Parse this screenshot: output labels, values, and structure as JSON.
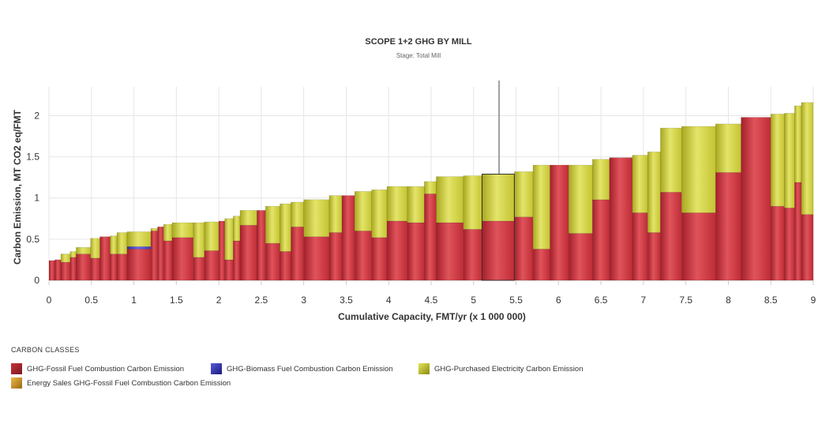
{
  "colors": {
    "fossil": "#c9303a",
    "biomass": "#3a3ac4",
    "electricity": "#cfcf3a",
    "energy_sales": "#d19a2a",
    "grid": "#e6e6e6",
    "axis": "#cccccc"
  },
  "chart_data": {
    "type": "bar",
    "title": "SCOPE 1+2 GHG BY MILL",
    "subtitle": "Stage: Total Mill",
    "xlabel": "Cumulative Capacity, FMT/yr (x 1 000 000)",
    "ylabel": "Carbon Emission, MT CO2 eq/FMT",
    "xlim": [
      0,
      9
    ],
    "ylim": [
      0,
      2.35
    ],
    "xticks": [
      "0",
      "0.5",
      "1",
      "1.5",
      "2",
      "2.5",
      "3",
      "3.5",
      "4",
      "4.5",
      "5",
      "5.5",
      "6",
      "6.5",
      "7",
      "7.5",
      "8",
      "8.5",
      "9"
    ],
    "yticks": [
      "0",
      "0.5",
      "1",
      "1.5",
      "2"
    ],
    "grid": true,
    "legend_title": "CARBON CLASSES",
    "legend_position": "bottom-left",
    "series": [
      {
        "key": "fossil",
        "name": "GHG-Fossil Fuel Combustion Carbon Emission"
      },
      {
        "key": "biomass",
        "name": "GHG-Biomass Fuel Combustion Carbon Emission"
      },
      {
        "key": "electricity",
        "name": "GHG-Purchased Electricity Carbon Emission"
      },
      {
        "key": "energy_sales",
        "name": "Energy Sales GHG-Fossil Fuel Combustion Carbon Emission"
      }
    ],
    "mills": [
      {
        "start": 0.0,
        "end": 0.07,
        "fossil": 0.24,
        "biomass": 0,
        "electricity": 0.0
      },
      {
        "start": 0.07,
        "end": 0.14,
        "fossil": 0.25,
        "biomass": 0,
        "electricity": 0.0
      },
      {
        "start": 0.14,
        "end": 0.25,
        "fossil": 0.22,
        "biomass": 0,
        "electricity": 0.1
      },
      {
        "start": 0.25,
        "end": 0.32,
        "fossil": 0.28,
        "biomass": 0,
        "electricity": 0.07
      },
      {
        "start": 0.32,
        "end": 0.49,
        "fossil": 0.32,
        "biomass": 0,
        "electricity": 0.08
      },
      {
        "start": 0.49,
        "end": 0.6,
        "fossil": 0.27,
        "biomass": 0,
        "electricity": 0.24
      },
      {
        "start": 0.6,
        "end": 0.72,
        "fossil": 0.53,
        "biomass": 0,
        "electricity": 0.0
      },
      {
        "start": 0.72,
        "end": 0.8,
        "fossil": 0.32,
        "biomass": 0,
        "electricity": 0.22
      },
      {
        "start": 0.8,
        "end": 0.92,
        "fossil": 0.32,
        "biomass": 0,
        "electricity": 0.26
      },
      {
        "start": 0.92,
        "end": 1.2,
        "fossil": 0.38,
        "biomass": 0.03,
        "electricity": 0.18
      },
      {
        "start": 1.2,
        "end": 1.28,
        "fossil": 0.6,
        "biomass": 0,
        "electricity": 0.03
      },
      {
        "start": 1.28,
        "end": 1.35,
        "fossil": 0.65,
        "biomass": 0,
        "electricity": 0.0
      },
      {
        "start": 1.35,
        "end": 1.45,
        "fossil": 0.48,
        "biomass": 0,
        "electricity": 0.2
      },
      {
        "start": 1.45,
        "end": 1.7,
        "fossil": 0.52,
        "biomass": 0,
        "electricity": 0.18
      },
      {
        "start": 1.7,
        "end": 1.83,
        "fossil": 0.28,
        "biomass": 0,
        "electricity": 0.42
      },
      {
        "start": 1.83,
        "end": 2.0,
        "fossil": 0.36,
        "biomass": 0,
        "electricity": 0.35
      },
      {
        "start": 2.0,
        "end": 2.07,
        "fossil": 0.72,
        "biomass": 0,
        "electricity": 0.0
      },
      {
        "start": 2.07,
        "end": 2.17,
        "fossil": 0.25,
        "biomass": 0,
        "electricity": 0.5
      },
      {
        "start": 2.17,
        "end": 2.25,
        "fossil": 0.48,
        "biomass": 0,
        "electricity": 0.3
      },
      {
        "start": 2.25,
        "end": 2.45,
        "fossil": 0.67,
        "biomass": 0,
        "electricity": 0.18
      },
      {
        "start": 2.45,
        "end": 2.55,
        "fossil": 0.85,
        "biomass": 0,
        "electricity": 0.0
      },
      {
        "start": 2.55,
        "end": 2.72,
        "fossil": 0.45,
        "biomass": 0,
        "electricity": 0.45
      },
      {
        "start": 2.72,
        "end": 2.85,
        "fossil": 0.35,
        "biomass": 0,
        "electricity": 0.58
      },
      {
        "start": 2.85,
        "end": 3.0,
        "fossil": 0.65,
        "biomass": 0,
        "electricity": 0.3
      },
      {
        "start": 3.0,
        "end": 3.3,
        "fossil": 0.53,
        "biomass": 0,
        "electricity": 0.45
      },
      {
        "start": 3.3,
        "end": 3.45,
        "fossil": 0.58,
        "biomass": 0,
        "electricity": 0.45
      },
      {
        "start": 3.45,
        "end": 3.6,
        "fossil": 1.03,
        "biomass": 0,
        "electricity": 0.0
      },
      {
        "start": 3.6,
        "end": 3.8,
        "fossil": 0.6,
        "biomass": 0,
        "electricity": 0.48
      },
      {
        "start": 3.8,
        "end": 3.98,
        "fossil": 0.52,
        "biomass": 0,
        "electricity": 0.58
      },
      {
        "start": 3.98,
        "end": 4.22,
        "fossil": 0.72,
        "biomass": 0,
        "electricity": 0.42
      },
      {
        "start": 4.22,
        "end": 4.42,
        "fossil": 0.7,
        "biomass": 0,
        "electricity": 0.44
      },
      {
        "start": 4.42,
        "end": 4.56,
        "fossil": 1.05,
        "biomass": 0,
        "electricity": 0.15
      },
      {
        "start": 4.56,
        "end": 4.88,
        "fossil": 0.7,
        "biomass": 0,
        "electricity": 0.56
      },
      {
        "start": 4.88,
        "end": 5.1,
        "fossil": 0.62,
        "biomass": 0,
        "electricity": 0.65
      },
      {
        "start": 5.1,
        "end": 5.48,
        "fossil": 0.72,
        "biomass": 0,
        "electricity": 0.57
      },
      {
        "start": 5.48,
        "end": 5.7,
        "fossil": 0.77,
        "biomass": 0,
        "electricity": 0.55
      },
      {
        "start": 5.7,
        "end": 5.9,
        "fossil": 0.38,
        "biomass": 0,
        "electricity": 1.02
      },
      {
        "start": 5.9,
        "end": 6.12,
        "fossil": 1.4,
        "biomass": 0,
        "electricity": 0.0
      },
      {
        "start": 6.12,
        "end": 6.4,
        "fossil": 0.57,
        "biomass": 0,
        "electricity": 0.83
      },
      {
        "start": 6.4,
        "end": 6.6,
        "fossil": 0.98,
        "biomass": 0,
        "electricity": 0.49
      },
      {
        "start": 6.6,
        "end": 6.87,
        "fossil": 1.49,
        "biomass": 0,
        "electricity": 0.0
      },
      {
        "start": 6.87,
        "end": 7.05,
        "fossil": 0.82,
        "biomass": 0,
        "electricity": 0.7
      },
      {
        "start": 7.05,
        "end": 7.2,
        "fossil": 0.58,
        "biomass": 0,
        "electricity": 0.98
      },
      {
        "start": 7.2,
        "end": 7.45,
        "fossil": 1.07,
        "biomass": 0,
        "electricity": 0.78
      },
      {
        "start": 7.45,
        "end": 7.85,
        "fossil": 0.82,
        "biomass": 0,
        "electricity": 1.05
      },
      {
        "start": 7.85,
        "end": 8.15,
        "fossil": 1.31,
        "biomass": 0,
        "electricity": 0.59
      },
      {
        "start": 8.15,
        "end": 8.5,
        "fossil": 1.98,
        "biomass": 0,
        "electricity": 0.0
      },
      {
        "start": 8.5,
        "end": 8.66,
        "fossil": 0.9,
        "biomass": 0,
        "electricity": 1.12
      },
      {
        "start": 8.66,
        "end": 8.78,
        "fossil": 0.88,
        "biomass": 0,
        "electricity": 1.15
      },
      {
        "start": 8.78,
        "end": 8.86,
        "fossil": 1.19,
        "biomass": 0,
        "electricity": 0.93
      },
      {
        "start": 8.86,
        "end": 9.0,
        "fossil": 0.8,
        "biomass": 0,
        "electricity": 1.36
      }
    ],
    "highlight": {
      "start": 5.1,
      "end": 5.48,
      "marker_x": 5.3
    }
  }
}
